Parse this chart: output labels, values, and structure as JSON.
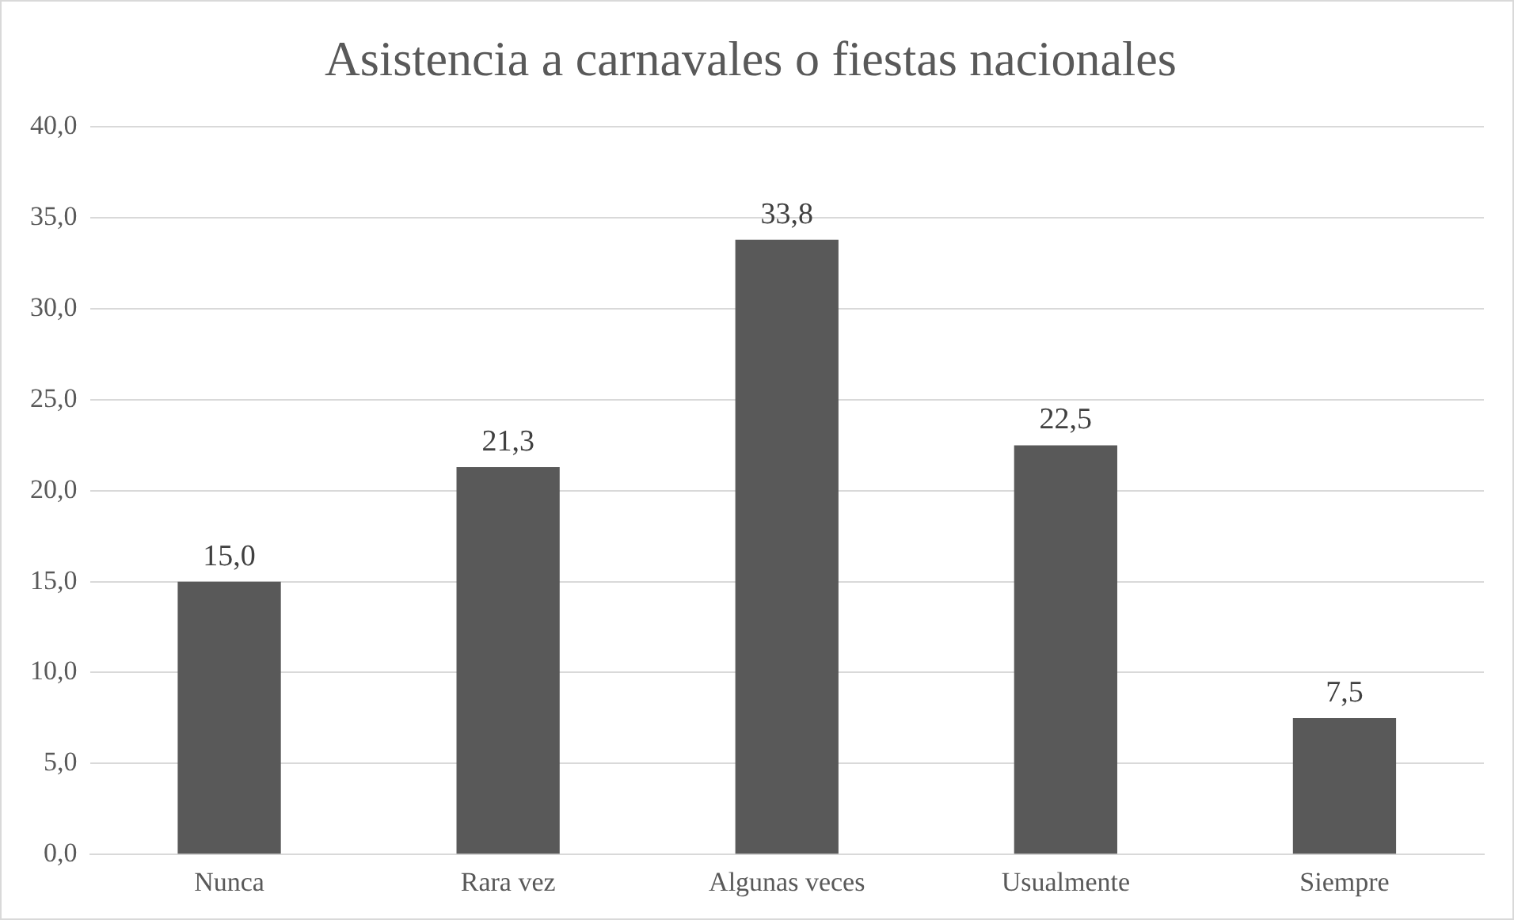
{
  "chart_data": {
    "type": "bar",
    "title": "Asistencia a carnavales o fiestas nacionales",
    "categories": [
      "Nunca",
      "Rara vez",
      "Algunas veces",
      "Usualmente",
      "Siempre"
    ],
    "values": [
      15.0,
      21.3,
      33.8,
      22.5,
      7.5
    ],
    "value_labels": [
      "15,0",
      "21,3",
      "33,8",
      "22,5",
      "7,5"
    ],
    "color": "#595959",
    "ylim": [
      0,
      40
    ],
    "yticks": [
      {
        "value": 0,
        "label": "0,0"
      },
      {
        "value": 5,
        "label": "5,0"
      },
      {
        "value": 10,
        "label": "10,0"
      },
      {
        "value": 15,
        "label": "15,0"
      },
      {
        "value": 20,
        "label": "20,0"
      },
      {
        "value": 25,
        "label": "25,0"
      },
      {
        "value": 30,
        "label": "30,0"
      },
      {
        "value": 35,
        "label": "35,0"
      },
      {
        "value": 40,
        "label": "40,0"
      }
    ],
    "grid": "y",
    "legend": false
  }
}
